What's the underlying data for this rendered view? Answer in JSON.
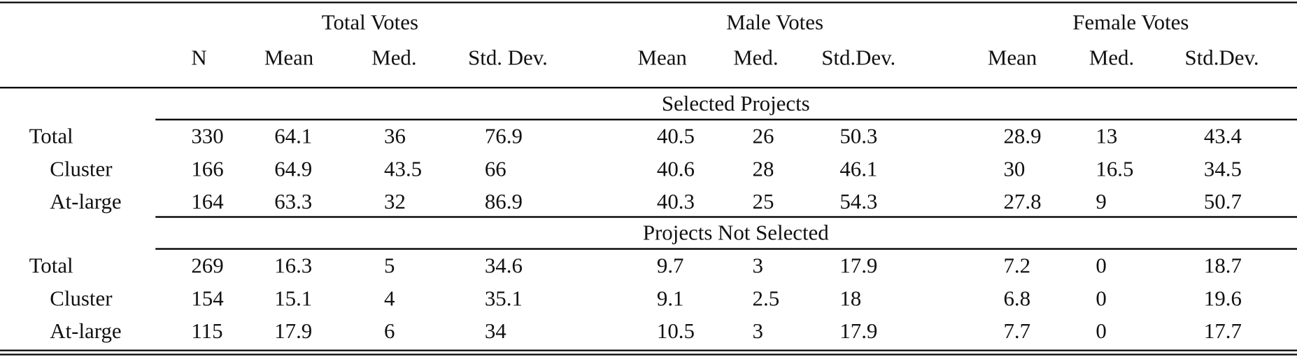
{
  "header": {
    "groups": [
      "Total Votes",
      "Male Votes",
      "Female Votes"
    ],
    "columns": [
      "N",
      "Mean",
      "Med.",
      "Std. Dev.",
      "Mean",
      "Med.",
      "Std.Dev.",
      "Mean",
      "Med.",
      "Std.Dev."
    ]
  },
  "sections": [
    {
      "title": "Selected Projects",
      "rows": [
        {
          "label": "Total",
          "cells": [
            330,
            64.1,
            36,
            76.9,
            40.5,
            26,
            50.3,
            28.9,
            13,
            43.4
          ]
        },
        {
          "label": "Cluster",
          "cells": [
            166,
            64.9,
            43.5,
            66,
            40.6,
            28,
            46.1,
            30,
            16.5,
            34.5
          ]
        },
        {
          "label": "At-large",
          "cells": [
            164,
            63.3,
            32,
            86.9,
            40.3,
            25,
            54.3,
            27.8,
            9,
            50.7
          ]
        }
      ]
    },
    {
      "title": "Projects Not Selected",
      "rows": [
        {
          "label": "Total",
          "cells": [
            269,
            16.3,
            5,
            34.6,
            9.7,
            3,
            17.9,
            7.2,
            0,
            18.7
          ]
        },
        {
          "label": "Cluster",
          "cells": [
            154,
            15.1,
            4,
            35.1,
            9.1,
            2.5,
            18,
            6.8,
            0,
            19.6
          ]
        },
        {
          "label": "At-large",
          "cells": [
            115,
            17.9,
            6,
            34,
            10.5,
            3,
            17.9,
            7.7,
            0,
            17.7
          ]
        }
      ]
    }
  ]
}
